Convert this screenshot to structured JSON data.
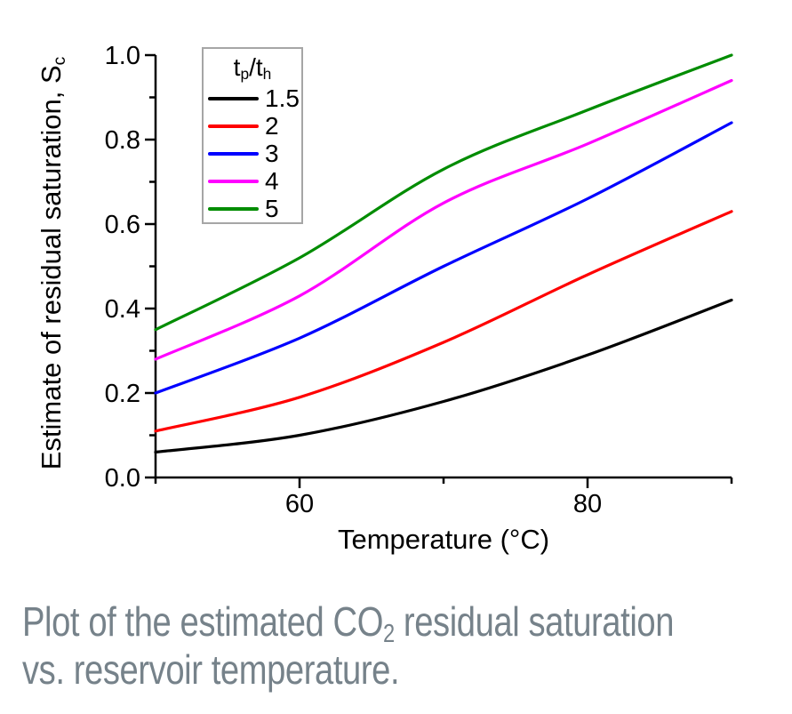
{
  "page": {
    "background": "#ffffff"
  },
  "figure": {
    "caption": {
      "line1_pre": "Plot of the estimated CO",
      "line1_sub": "2",
      "line1_post": " residual saturation",
      "line2": "vs. reservoir temperature.",
      "color": "#76828a"
    }
  },
  "chart_data": {
    "type": "line",
    "title": "",
    "xlabel": "Temperature (°C)",
    "ylabel_main": "Estimate of residual saturation, S",
    "ylabel_sub": "c",
    "xlim": [
      50,
      90
    ],
    "ylim": [
      0,
      1
    ],
    "x_major_ticks": [
      60,
      80
    ],
    "x_tick_labels": [
      "60",
      "80"
    ],
    "x_minor_ticks": [
      50,
      70,
      90
    ],
    "y_major_ticks": [
      0,
      0.2,
      0.4,
      0.6,
      0.8,
      1.0
    ],
    "y_tick_labels": [
      "0.0",
      "0.2",
      "0.4",
      "0.6",
      "0.8",
      "1.0"
    ],
    "y_minor_ticks": [
      0.1,
      0.3,
      0.5,
      0.7,
      0.9
    ],
    "grid": false,
    "axis_color": "#000000",
    "legend": {
      "position": "upper-left-inside",
      "title_parts": {
        "base1": "t",
        "sub1": "p",
        "base2": "/t",
        "sub2": "h"
      }
    },
    "x": [
      50,
      60,
      70,
      80,
      90
    ],
    "series": [
      {
        "name": "1.5",
        "color": "#000000",
        "values": [
          0.06,
          0.1,
          0.18,
          0.29,
          0.42
        ]
      },
      {
        "name": "2",
        "color": "#ff0000",
        "values": [
          0.11,
          0.19,
          0.32,
          0.48,
          0.63
        ]
      },
      {
        "name": "3",
        "color": "#0000ff",
        "values": [
          0.2,
          0.33,
          0.5,
          0.66,
          0.84
        ]
      },
      {
        "name": "4",
        "color": "#ff00ff",
        "values": [
          0.28,
          0.43,
          0.65,
          0.79,
          0.94
        ]
      },
      {
        "name": "5",
        "color": "#008c00",
        "values": [
          0.35,
          0.52,
          0.73,
          0.87,
          1.0
        ]
      }
    ]
  }
}
